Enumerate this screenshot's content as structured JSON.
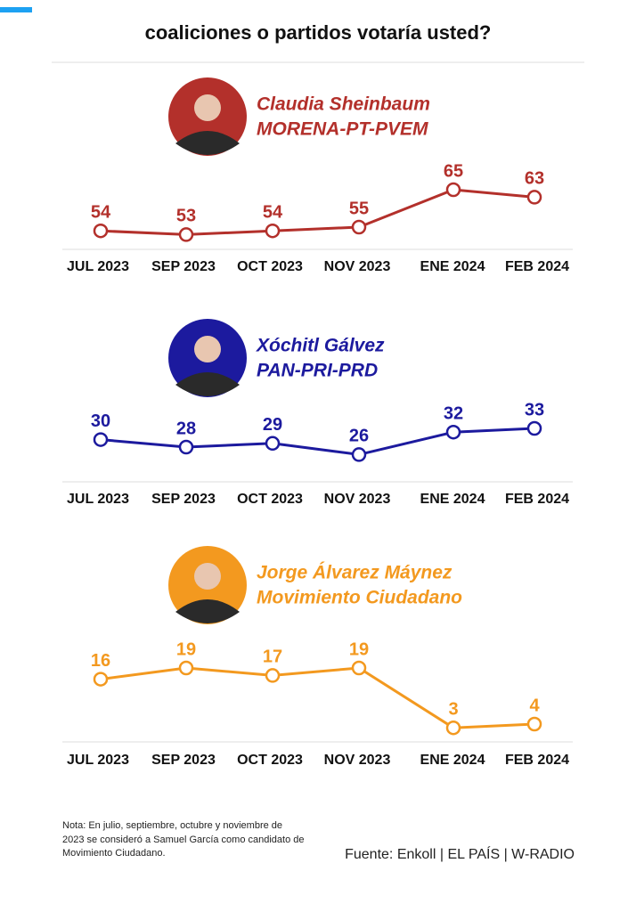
{
  "title": "coaliciones o partidos votaría usted?",
  "chart_data": [
    {
      "type": "line",
      "title": "Claudia Sheinbaum",
      "subtitle": "MORENA-PT-PVEM",
      "categories": [
        "JUL 2023",
        "SEP 2023",
        "OCT 2023",
        "NOV 2023",
        "ENE 2024",
        "FEB 2024"
      ],
      "values": [
        54,
        53,
        54,
        55,
        65,
        63
      ],
      "color": "#b3302b"
    },
    {
      "type": "line",
      "title": "Xóchitl Gálvez",
      "subtitle": "PAN-PRI-PRD",
      "categories": [
        "JUL 2023",
        "SEP 2023",
        "OCT 2023",
        "NOV 2023",
        "ENE 2024",
        "FEB 2024"
      ],
      "values": [
        30,
        28,
        29,
        26,
        32,
        33
      ],
      "color": "#1c1a9e"
    },
    {
      "type": "line",
      "title": "Jorge Álvarez Máynez",
      "subtitle": "Movimiento Ciudadano",
      "categories": [
        "JUL 2023",
        "SEP 2023",
        "OCT 2023",
        "NOV 2023",
        "ENE 2024",
        "FEB 2024"
      ],
      "values": [
        16,
        19,
        17,
        19,
        3,
        4
      ],
      "color": "#f3991f"
    }
  ],
  "note": [
    "Nota: En julio, septiembre, octubre y noviembre de",
    "2023 se consideró a Samuel García como candidato de",
    "Movimiento Ciudadano."
  ],
  "source": "Fuente: Enkoll | EL PAÍS | W-RADIO"
}
